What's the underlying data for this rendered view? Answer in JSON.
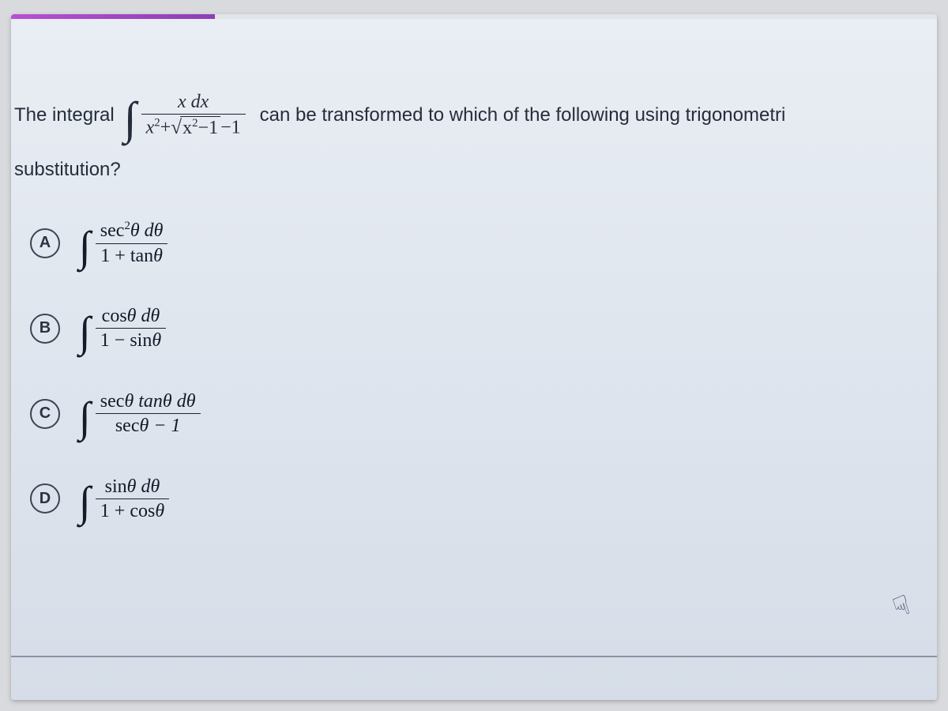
{
  "progress": {
    "percent": 22,
    "track_color": "#e2e4e8",
    "fill_color_start": "#b84fd1",
    "fill_color_end": "#8b3fb5"
  },
  "colors": {
    "page_bg": "#d8dadd",
    "panel_bg_top": "#e9eef4",
    "panel_bg_mid": "#e1e7ef",
    "panel_bg_bottom": "#d6dde8",
    "text_primary": "#1f2530",
    "math_color": "#131a28",
    "circle_border": "#3b4456",
    "rule_color": "#8b94a3"
  },
  "typography": {
    "body_family": "Arial, Helvetica, sans-serif",
    "math_family": "Georgia, 'Times New Roman', serif",
    "question_fontsize_pt": 18,
    "option_math_fontsize_pt": 20,
    "integral_fontsize_pt": 44
  },
  "question": {
    "lead": "The integral",
    "integral_numerator": "x dx",
    "integral_denominator_pre": "x",
    "integral_denominator_exp1": "2",
    "integral_denominator_plus": "+",
    "integral_denominator_sqrt_inner_pre": "x",
    "integral_denominator_sqrt_inner_exp": "2",
    "integral_denominator_sqrt_inner_tail": "−1",
    "integral_denominator_tail": "−1",
    "mid": "can be transformed to which of the following using trigonometri",
    "tail": "substitution?"
  },
  "options": {
    "A": {
      "letter": "A",
      "num_a": "sec",
      "num_exp": "2",
      "num_b": "θ dθ",
      "den_a": "1 + tan",
      "den_b": "θ"
    },
    "B": {
      "letter": "B",
      "num_a": "cos",
      "num_b": "θ dθ",
      "den_a": "1 − sin",
      "den_b": "θ"
    },
    "C": {
      "letter": "C",
      "num_a": "sec",
      "num_mid": "θ tan",
      "num_b": "θ dθ",
      "den_a": "sec",
      "den_b": "θ − 1"
    },
    "D": {
      "letter": "D",
      "num_a": "sin",
      "num_b": "θ dθ",
      "den_a": "1 + cos",
      "den_b": "θ"
    }
  },
  "cursor_glyph": "☟"
}
